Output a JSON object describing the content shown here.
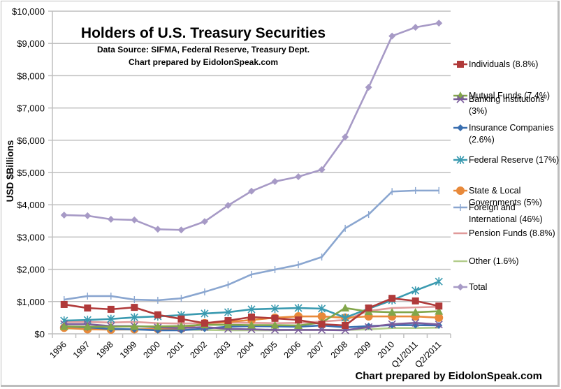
{
  "chart_data": {
    "type": "line",
    "title": "Holders of U.S. Treasury Securities",
    "subtitle_lines": [
      "Data Source: SIFMA, Federal Reserve, Treasury Dept.",
      "Chart prepared by EidolonSpeak.com"
    ],
    "footer": "Chart prepared by EidolonSpeak.com",
    "xlabel": "",
    "ylabel": "USD $Billions",
    "ylim": [
      0,
      10000
    ],
    "ytick_step": 1000,
    "ytick_labels": [
      "$0",
      "$1,000",
      "$2,000",
      "$3,000",
      "$4,000",
      "$5,000",
      "$6,000",
      "$7,000",
      "$8,000",
      "$9,000",
      "$10,000"
    ],
    "grid": true,
    "legend_position": "right",
    "categories": [
      "1996",
      "1997",
      "1998",
      "1999",
      "2000",
      "2001",
      "2002",
      "2003",
      "2004",
      "2005",
      "2006",
      "2007",
      "2008",
      "2009",
      "2010",
      "Q1/2011",
      "Q2/2011"
    ],
    "series": [
      {
        "name": "Individuals (8.8%)",
        "legend_lines": [
          "Individuals (8.8%)"
        ],
        "color": "#b03a3a",
        "marker": "square",
        "values": [
          910,
          800,
          760,
          820,
          590,
          460,
          330,
          410,
          520,
          480,
          430,
          300,
          260,
          800,
          1100,
          1020,
          860
        ]
      },
      {
        "name": "Mutual Funds (7.4%)",
        "legend_lines": [
          "Mutual Funds (7.4%)"
        ],
        "color": "#82a64a",
        "marker": "triangle",
        "values": [
          230,
          220,
          220,
          230,
          230,
          240,
          280,
          280,
          270,
          270,
          260,
          350,
          800,
          690,
          670,
          670,
          700
        ]
      },
      {
        "name": "Banking Institutions (3%)",
        "legend_lines": [
          "Banking Institutions",
          "(3%)"
        ],
        "color": "#7a5c9c",
        "marker": "x",
        "values": [
          300,
          300,
          240,
          240,
          200,
          180,
          210,
          150,
          140,
          120,
          120,
          120,
          110,
          210,
          300,
          340,
          290
        ]
      },
      {
        "name": "Insurance Companies (2.6%)",
        "legend_lines": [
          "Insurance Companies",
          "(2.6%)"
        ],
        "color": "#3a6fb0",
        "marker": "diamond",
        "values": [
          230,
          200,
          150,
          140,
          110,
          110,
          160,
          220,
          240,
          230,
          220,
          260,
          200,
          240,
          270,
          270,
          260
        ]
      },
      {
        "name": "Federal Reserve (17%)",
        "legend_lines": [
          "Federal Reserve (17%)"
        ],
        "color": "#3a9ab0",
        "marker": "star",
        "values": [
          410,
          430,
          460,
          510,
          540,
          580,
          630,
          670,
          760,
          780,
          800,
          780,
          500,
          780,
          1040,
          1340,
          1620
        ]
      },
      {
        "name": "State & Local Governments (5%)",
        "legend_lines": [
          " State & Local",
          "Governments (5%)"
        ],
        "color": "#e8893a",
        "marker": "circle",
        "values": [
          190,
          140,
          130,
          140,
          150,
          160,
          330,
          370,
          430,
          500,
          540,
          540,
          500,
          540,
          540,
          540,
          500
        ]
      },
      {
        "name": "Foreign and International (46%)",
        "legend_lines": [
          "Foreign and",
          "International (46%)"
        ],
        "color": "#8aa6d0",
        "marker": "plus",
        "values": [
          1060,
          1170,
          1170,
          1060,
          1040,
          1100,
          1300,
          1520,
          1840,
          1990,
          2140,
          2380,
          3270,
          3700,
          4410,
          4440,
          4440
        ]
      },
      {
        "name": "Pension Funds (8.8%)",
        "legend_lines": [
          "Pension Funds (8.8%)"
        ],
        "color": "#e09a9a",
        "marker": "none",
        "values": [
          370,
          370,
          350,
          370,
          330,
          320,
          330,
          350,
          340,
          330,
          340,
          380,
          430,
          710,
          800,
          820,
          840
        ]
      },
      {
        "name": "Other (1.6%)",
        "legend_lines": [
          "Other (1.6%)"
        ],
        "color": "#b2cc8a",
        "marker": "none",
        "values": [
          170,
          150,
          140,
          130,
          130,
          130,
          120,
          110,
          110,
          110,
          120,
          120,
          120,
          140,
          180,
          180,
          190
        ]
      },
      {
        "name": "Total",
        "legend_lines": [
          "Total"
        ],
        "color": "#a79ac6",
        "marker": "diamond",
        "values": [
          3680,
          3660,
          3550,
          3530,
          3240,
          3220,
          3480,
          3980,
          4420,
          4720,
          4870,
          5090,
          6100,
          7640,
          9230,
          9500,
          9630
        ]
      }
    ]
  }
}
